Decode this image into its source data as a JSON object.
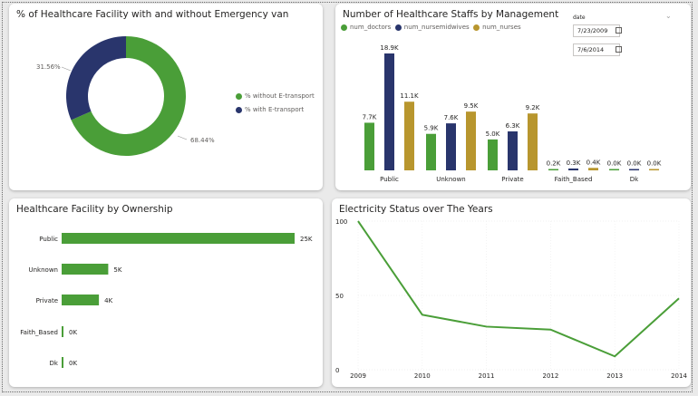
{
  "colors": {
    "green": "#4a9e38",
    "navy": "#29356c",
    "gold": "#b8962e"
  },
  "donut": {
    "title": "% of Healthcare Facility with and without Emergency van",
    "legend": [
      {
        "label": "% without E-transport",
        "color": "#4a9e38"
      },
      {
        "label": "% with E-transport",
        "color": "#29356c"
      }
    ],
    "label_without": "68.44%",
    "label_with": "31.56%"
  },
  "staff": {
    "title": "Number of Healthcare Staffs by Management",
    "legend": [
      "num_doctors",
      "num_nursemidwives",
      "num_nurses"
    ],
    "date_label": "date",
    "date_from": "7/23/2009",
    "date_to": "7/6/2014"
  },
  "ownership": {
    "title": "Healthcare Facility by Ownership"
  },
  "electricity": {
    "title": "Electricity Status over The Years"
  },
  "chart_data": [
    {
      "type": "pie",
      "title": "% of Healthcare Facility with and without Emergency van",
      "categories": [
        "% without E-transport",
        "% with E-transport"
      ],
      "values": [
        68.44,
        31.56
      ],
      "labels": [
        "68.44%",
        "31.56%"
      ]
    },
    {
      "type": "bar",
      "title": "Number of Healthcare Staffs by Management",
      "categories": [
        "Public",
        "Unknown",
        "Private",
        "Faith_Based",
        "Dk"
      ],
      "series": [
        {
          "name": "num_doctors",
          "values": [
            7.7,
            5.9,
            5.0,
            0.2,
            0.0
          ],
          "labels": [
            "7.7K",
            "5.9K",
            "5.0K",
            "0.2K",
            "0.0K"
          ]
        },
        {
          "name": "num_nursemidwives",
          "values": [
            18.9,
            7.6,
            6.3,
            0.3,
            0.0
          ],
          "labels": [
            "18.9K",
            "7.6K",
            "6.3K",
            "0.3K",
            "0.0K"
          ]
        },
        {
          "name": "num_nurses",
          "values": [
            11.1,
            9.5,
            9.2,
            0.4,
            0.0
          ],
          "labels": [
            "11.1K",
            "9.5K",
            "9.2K",
            "0.4K",
            "0.0K"
          ]
        }
      ]
    },
    {
      "type": "bar",
      "orientation": "horizontal",
      "title": "Healthcare Facility by Ownership",
      "categories": [
        "Public",
        "Unknown",
        "Private",
        "Faith_Based",
        "Dk"
      ],
      "values": [
        25,
        5,
        4,
        0,
        0
      ],
      "labels": [
        "25K",
        "5K",
        "4K",
        "0K",
        "0K"
      ]
    },
    {
      "type": "line",
      "title": "Electricity Status over The Years",
      "x": [
        "2009",
        "2010",
        "2011",
        "2012",
        "2013",
        "2014"
      ],
      "y": [
        100,
        37,
        29,
        27,
        9,
        48
      ],
      "ylim": [
        0,
        100
      ],
      "yticks": [
        "0",
        "50",
        "100"
      ]
    }
  ]
}
